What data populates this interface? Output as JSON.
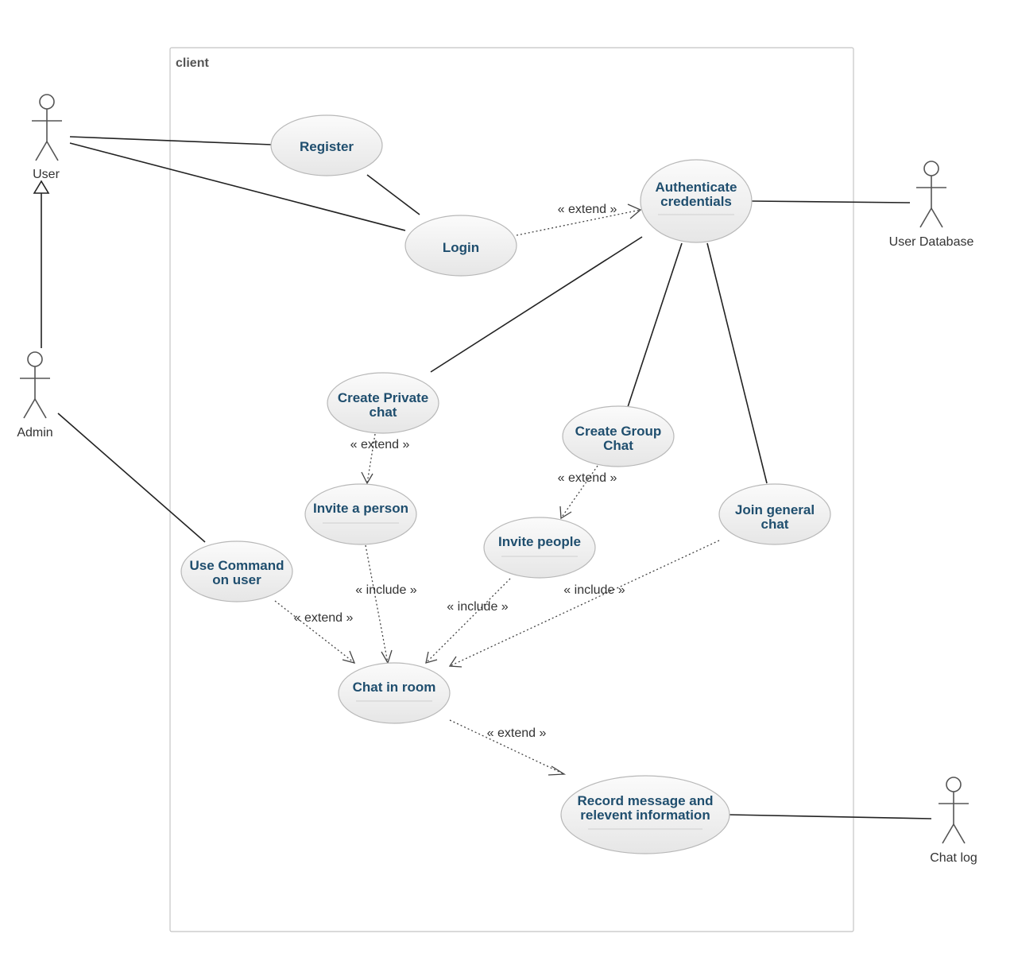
{
  "system": {
    "title": "client"
  },
  "actors": {
    "user": "User",
    "admin": "Admin",
    "user_database": "User Database",
    "chat_log": "Chat log"
  },
  "use_cases": {
    "register": [
      "Register"
    ],
    "login": [
      "Login"
    ],
    "authenticate": [
      "Authenticate",
      "credentials"
    ],
    "create_private": [
      "Create Private",
      "chat"
    ],
    "create_group": [
      "Create Group",
      "Chat"
    ],
    "invite_person": [
      "Invite a person"
    ],
    "invite_people": [
      "Invite people"
    ],
    "join_general": [
      "Join general",
      "chat"
    ],
    "use_command": [
      "Use Command",
      "on user"
    ],
    "chat_in_room": [
      "Chat in room"
    ],
    "record_message": [
      "Record message and",
      "relevent information"
    ]
  },
  "relations": {
    "login_auth": "« extend »",
    "private_invite": "« extend »",
    "group_invite": "« extend »",
    "invite_person_chat": "« include »",
    "invite_people_chat": "« include »",
    "join_chat": "« include »",
    "command_chat": "« extend »",
    "chat_record": "« extend »"
  }
}
